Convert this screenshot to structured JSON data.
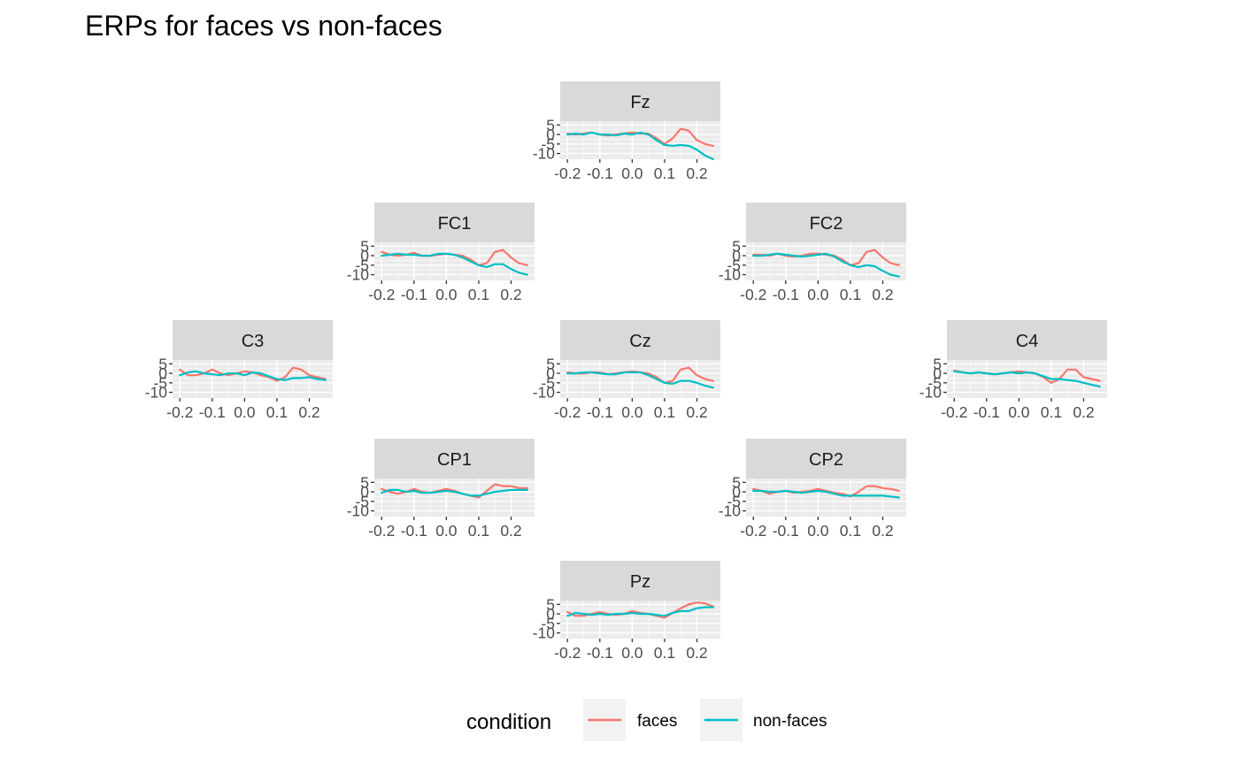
{
  "chart_data": {
    "type": "line",
    "title": "ERPs for faces vs non-faces",
    "layout": "topographic",
    "x_range": [
      -0.2,
      0.25
    ],
    "y_range": [
      -13,
      7
    ],
    "x_ticks": [
      -0.2,
      -0.1,
      0.0,
      0.1,
      0.2
    ],
    "x_tick_labels": [
      "-0.2",
      "-0.1",
      "0.0",
      "0.1",
      "0.2"
    ],
    "y_ticks": [
      5,
      0,
      -5,
      -10
    ],
    "y_tick_labels": [
      "5",
      "0",
      "-5",
      "-10"
    ],
    "grid": true,
    "legend": {
      "title": "condition",
      "position": "bottom",
      "entries": [
        {
          "label": "faces",
          "color": "#F8766D"
        },
        {
          "label": "non-faces",
          "color": "#00BFC4"
        }
      ]
    },
    "series_colors": {
      "faces": "#F8766D",
      "non-faces": "#00BFC4"
    },
    "x": [
      -0.2,
      -0.175,
      -0.15,
      -0.125,
      -0.1,
      -0.075,
      -0.05,
      -0.025,
      0.0,
      0.025,
      0.05,
      0.075,
      0.1,
      0.125,
      0.15,
      0.175,
      0.2,
      0.225,
      0.25
    ],
    "panels": [
      {
        "name": "Fz",
        "faces": [
          0.5,
          0.0,
          0.5,
          1.0,
          0.0,
          -0.5,
          0.0,
          0.5,
          1.0,
          0.5,
          0.5,
          -2.0,
          -5.0,
          -2.0,
          3.0,
          2.0,
          -3.0,
          -5.0,
          -6.0
        ],
        "non-faces": [
          0.0,
          0.5,
          0.0,
          1.0,
          0.0,
          0.0,
          -0.5,
          0.5,
          0.0,
          1.0,
          0.0,
          -3.0,
          -5.5,
          -6.0,
          -5.5,
          -6.0,
          -8.0,
          -11.0,
          -13.0
        ]
      },
      {
        "name": "FC1",
        "faces": [
          2.0,
          0.5,
          0.0,
          0.5,
          1.5,
          0.0,
          0.0,
          0.5,
          1.0,
          0.5,
          0.0,
          -2.0,
          -5.0,
          -4.0,
          2.0,
          3.0,
          -1.0,
          -4.0,
          -5.0
        ],
        "non-faces": [
          0.0,
          0.5,
          1.0,
          0.5,
          0.5,
          0.0,
          0.0,
          1.0,
          1.0,
          0.5,
          -1.0,
          -3.0,
          -5.0,
          -6.0,
          -4.5,
          -4.5,
          -7.0,
          -9.0,
          -10.0
        ]
      },
      {
        "name": "FC2",
        "faces": [
          0.5,
          0.5,
          0.0,
          1.0,
          0.0,
          -0.5,
          0.0,
          1.0,
          1.0,
          0.5,
          0.0,
          -2.0,
          -5.0,
          -4.0,
          2.0,
          3.0,
          -1.0,
          -4.0,
          -5.0
        ],
        "non-faces": [
          0.0,
          0.0,
          0.5,
          1.0,
          0.5,
          0.0,
          -0.5,
          0.0,
          0.5,
          1.0,
          -0.5,
          -3.0,
          -5.0,
          -6.0,
          -5.0,
          -5.5,
          -8.0,
          -10.0,
          -11.0
        ]
      },
      {
        "name": "C3",
        "faces": [
          2.0,
          -1.0,
          -1.0,
          0.0,
          2.0,
          0.0,
          -1.0,
          0.0,
          1.0,
          0.5,
          -1.0,
          -2.0,
          -4.0,
          -2.0,
          3.0,
          2.0,
          -1.0,
          -2.0,
          -3.0
        ],
        "non-faces": [
          -1.0,
          0.5,
          1.0,
          0.0,
          -0.5,
          -1.0,
          0.0,
          0.0,
          -1.0,
          0.5,
          0.0,
          -1.5,
          -3.0,
          -3.5,
          -2.5,
          -2.5,
          -2.0,
          -3.0,
          -3.5
        ]
      },
      {
        "name": "Cz",
        "faces": [
          0.5,
          0.0,
          0.0,
          0.5,
          0.5,
          -0.5,
          0.0,
          0.5,
          1.0,
          0.5,
          0.0,
          -2.0,
          -5.0,
          -4.0,
          2.0,
          3.0,
          -1.0,
          -3.0,
          -4.0
        ],
        "non-faces": [
          0.0,
          0.0,
          0.5,
          0.5,
          0.0,
          -0.5,
          -0.5,
          0.5,
          0.5,
          0.5,
          -1.0,
          -3.0,
          -5.0,
          -5.5,
          -4.0,
          -4.0,
          -5.0,
          -6.5,
          -7.5
        ]
      },
      {
        "name": "C4",
        "faces": [
          1.5,
          0.5,
          0.0,
          0.5,
          0.0,
          -0.5,
          0.0,
          0.5,
          1.0,
          0.5,
          0.0,
          -2.0,
          -5.0,
          -3.0,
          2.0,
          2.0,
          -2.0,
          -3.0,
          -4.0
        ],
        "non-faces": [
          1.0,
          0.5,
          0.0,
          0.5,
          0.0,
          -0.5,
          0.0,
          0.5,
          0.0,
          0.5,
          0.0,
          -1.5,
          -3.0,
          -3.0,
          -3.5,
          -4.0,
          -5.0,
          -6.0,
          -7.0
        ]
      },
      {
        "name": "CP1",
        "faces": [
          1.5,
          0.0,
          -1.0,
          0.0,
          1.5,
          0.0,
          -0.5,
          0.5,
          1.5,
          0.5,
          -1.0,
          -2.0,
          -3.0,
          0.5,
          4.0,
          3.0,
          3.0,
          2.0,
          2.0
        ],
        "non-faces": [
          -0.5,
          1.0,
          1.0,
          0.0,
          0.5,
          -0.5,
          -0.5,
          0.0,
          0.5,
          0.0,
          -1.0,
          -2.0,
          -2.0,
          -1.0,
          0.0,
          0.5,
          1.0,
          1.0,
          1.0
        ]
      },
      {
        "name": "CP2",
        "faces": [
          1.5,
          0.5,
          -1.0,
          0.0,
          0.5,
          -0.5,
          0.0,
          0.5,
          1.5,
          0.5,
          -0.5,
          -1.0,
          -2.5,
          0.0,
          3.0,
          3.0,
          2.0,
          1.5,
          0.5
        ],
        "non-faces": [
          0.5,
          0.5,
          0.0,
          0.0,
          0.5,
          0.0,
          -0.5,
          0.0,
          0.5,
          0.0,
          -1.0,
          -2.0,
          -2.0,
          -2.0,
          -2.0,
          -2.0,
          -2.0,
          -2.5,
          -3.0
        ]
      },
      {
        "name": "Pz",
        "faces": [
          1.0,
          -1.0,
          -1.0,
          0.0,
          1.0,
          0.0,
          -0.5,
          0.0,
          1.5,
          0.5,
          0.0,
          -1.0,
          -2.0,
          0.5,
          3.0,
          5.0,
          6.0,
          5.5,
          4.0
        ],
        "non-faces": [
          -1.0,
          0.5,
          0.0,
          -0.5,
          0.0,
          -0.5,
          0.0,
          0.0,
          0.5,
          0.0,
          0.0,
          -0.5,
          -1.0,
          0.5,
          1.5,
          1.5,
          3.0,
          3.5,
          3.5
        ]
      }
    ]
  }
}
